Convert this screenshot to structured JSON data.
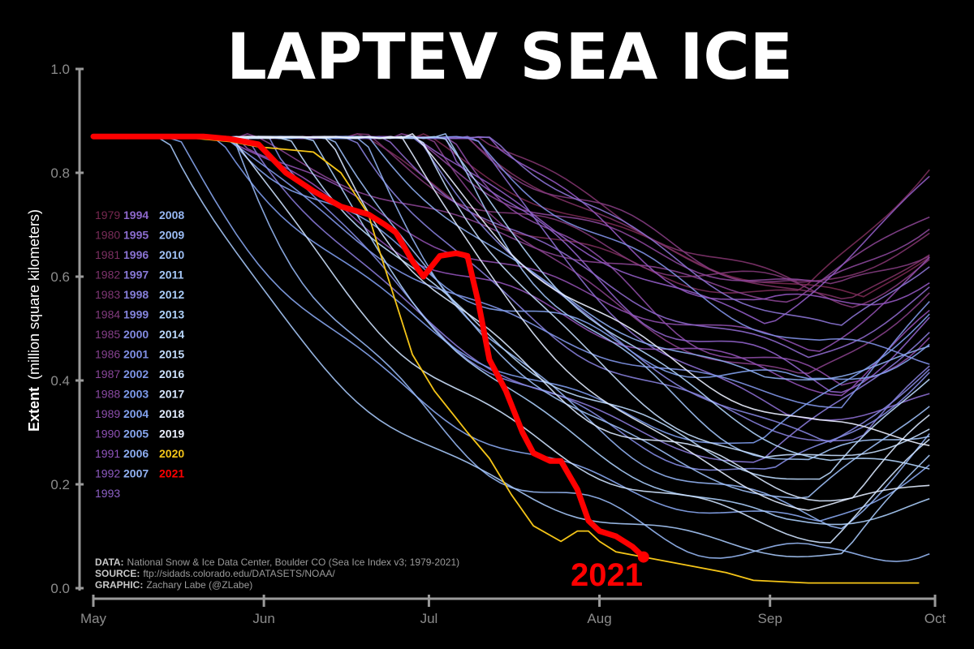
{
  "chart_data": {
    "type": "line",
    "title": "LAPTEV SEA ICE",
    "ylabel_bold": "Extent",
    "ylabel_rest": "(million square kilometers)",
    "ylim": [
      0.0,
      1.0
    ],
    "yticks": [
      "0.0",
      "0.2",
      "0.4",
      "0.6",
      "0.8",
      "1.0"
    ],
    "xticks": [
      "May",
      "Jun",
      "Jul",
      "Aug",
      "Sep",
      "Oct"
    ],
    "grid": false,
    "legend_placement": "left",
    "legend_columns": [
      [
        "1979",
        "1980",
        "1981",
        "1982",
        "1983",
        "1984",
        "1985",
        "1986",
        "1987",
        "1988",
        "1989",
        "1990",
        "1991",
        "1992",
        "1993"
      ],
      [
        "1994",
        "1995",
        "1996",
        "1997",
        "1998",
        "1999",
        "2000",
        "2001",
        "2002",
        "2003",
        "2004",
        "2005",
        "2006",
        "2007"
      ],
      [
        "2008",
        "2009",
        "2010",
        "2011",
        "2012",
        "2013",
        "2014",
        "2015",
        "2016",
        "2017",
        "2018",
        "2019",
        "2020",
        "2021"
      ]
    ],
    "highlight_colors": {
      "2020": "#f5c518",
      "2021": "#ff0000"
    },
    "annotation": "2021",
    "series_2021": {
      "x_days": [
        0,
        10,
        20,
        25,
        30,
        35,
        40,
        45,
        50,
        53,
        55,
        58,
        60,
        63,
        66,
        68,
        70,
        72,
        75,
        78,
        80,
        83,
        85,
        88,
        90,
        92,
        95,
        98,
        100
      ],
      "y": [
        0.87,
        0.87,
        0.87,
        0.865,
        0.855,
        0.8,
        0.765,
        0.735,
        0.72,
        0.7,
        0.685,
        0.63,
        0.6,
        0.64,
        0.645,
        0.64,
        0.55,
        0.44,
        0.38,
        0.3,
        0.26,
        0.245,
        0.245,
        0.19,
        0.13,
        0.11,
        0.1,
        0.08,
        0.06
      ]
    },
    "series_2020": {
      "x_days": [
        0,
        15,
        25,
        30,
        40,
        45,
        50,
        52,
        55,
        58,
        62,
        65,
        68,
        72,
        76,
        80,
        85,
        88,
        90,
        92,
        95,
        100,
        105,
        110,
        115,
        120,
        130,
        140,
        150
      ],
      "y": [
        0.87,
        0.87,
        0.86,
        0.85,
        0.84,
        0.8,
        0.72,
        0.65,
        0.55,
        0.45,
        0.38,
        0.34,
        0.3,
        0.25,
        0.18,
        0.12,
        0.09,
        0.11,
        0.11,
        0.09,
        0.07,
        0.06,
        0.05,
        0.04,
        0.03,
        0.015,
        0.01,
        0.01,
        0.01
      ]
    }
  },
  "credits": {
    "data_label": "DATA:",
    "data_text": "National Snow & Ice Data Center, Boulder CO (Sea Ice Index v3; 1979-2021)",
    "source_label": "SOURCE:",
    "source_text": "ftp://sidads.colorado.edu/DATASETS/NOAA/",
    "graphic_label": "GRAPHIC:",
    "graphic_text": "Zachary Labe (@ZLabe)"
  }
}
